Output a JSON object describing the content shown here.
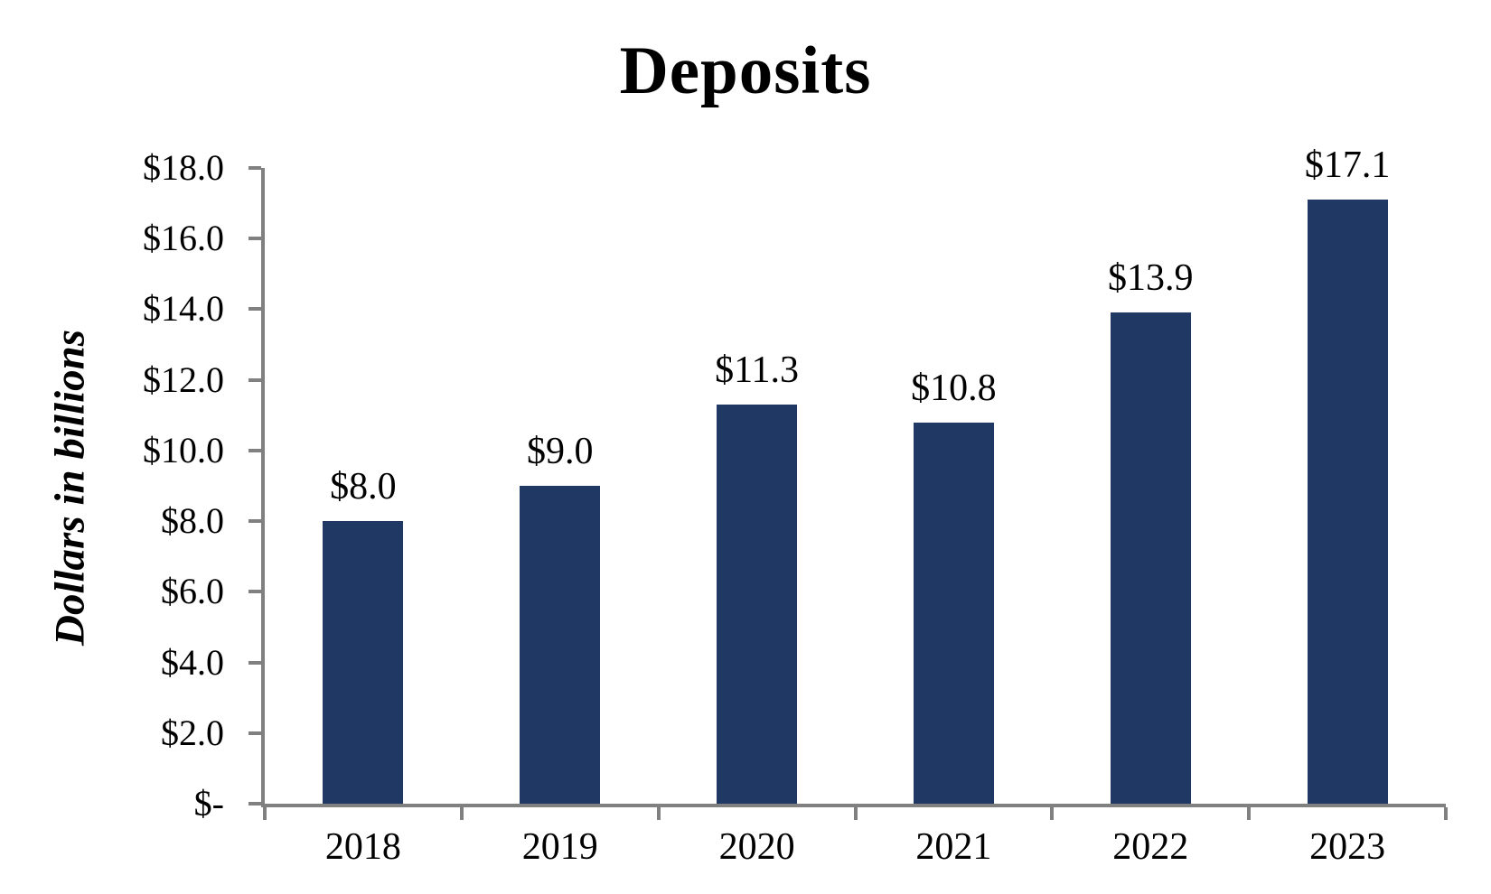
{
  "chart_data": {
    "type": "bar",
    "title": "Deposits",
    "ylabel": "Dollars in billions",
    "xlabel": "",
    "categories": [
      "2018",
      "2019",
      "2020",
      "2021",
      "2022",
      "2023"
    ],
    "values": [
      8.0,
      9.0,
      11.3,
      10.8,
      13.9,
      17.1
    ],
    "bar_labels": [
      "$8.0",
      "$9.0",
      "$11.3",
      "$10.8",
      "$13.9",
      "$17.1"
    ],
    "ylim": [
      0,
      18
    ],
    "ytick_step": 2,
    "ytick_labels": [
      "$-",
      "$2.0",
      "$4.0",
      "$6.0",
      "$8.0",
      "$10.0",
      "$12.0",
      "$14.0",
      "$16.0",
      "$18.0"
    ],
    "grid": false,
    "legend": "none",
    "bar_color": "#1F3864",
    "axis_color": "#808080",
    "text_color": "#000000",
    "background_color": "#FFFFFF"
  }
}
